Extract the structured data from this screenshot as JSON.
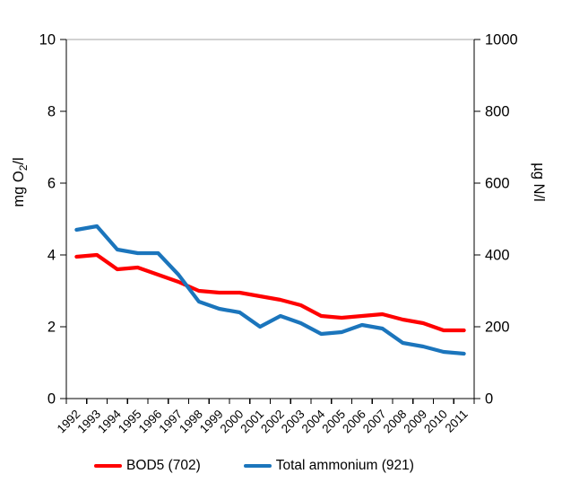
{
  "chart_data": {
    "type": "line",
    "title": "",
    "categories": [
      "1992",
      "1993",
      "1994",
      "1995",
      "1996",
      "1997",
      "1998",
      "1999",
      "2000",
      "2001",
      "2002",
      "2003",
      "2004",
      "2005",
      "2006",
      "2007",
      "2008",
      "2009",
      "2010",
      "2011"
    ],
    "series": [
      {
        "name": "BOD5 (702)",
        "axis": "left",
        "color": "#FF0000",
        "values": [
          3.95,
          4.0,
          3.6,
          3.65,
          3.45,
          3.25,
          3.0,
          2.95,
          2.95,
          2.85,
          2.75,
          2.6,
          2.3,
          2.25,
          2.3,
          2.35,
          2.2,
          2.1,
          1.9,
          1.9
        ]
      },
      {
        "name": "Total ammonium (921)",
        "axis": "right",
        "color": "#1B75BC",
        "values": [
          470,
          480,
          415,
          405,
          405,
          345,
          270,
          250,
          240,
          200,
          230,
          210,
          180,
          185,
          205,
          195,
          155,
          145,
          130,
          125
        ]
      }
    ],
    "left_axis": {
      "title": "mg O2/l",
      "title_parts": {
        "pre": "mg O",
        "sub": "2",
        "post": "/l"
      },
      "min": 0,
      "max": 10,
      "ticks": [
        0,
        2,
        4,
        6,
        8,
        10
      ]
    },
    "right_axis": {
      "title": "µg N/l",
      "min": 0,
      "max": 1000,
      "ticks": [
        0,
        200,
        400,
        600,
        800,
        1000
      ]
    },
    "grid": "top-line-only",
    "gridline_color": "#A6A6A6",
    "axis_color": "#000000",
    "legend_position": "bottom"
  }
}
